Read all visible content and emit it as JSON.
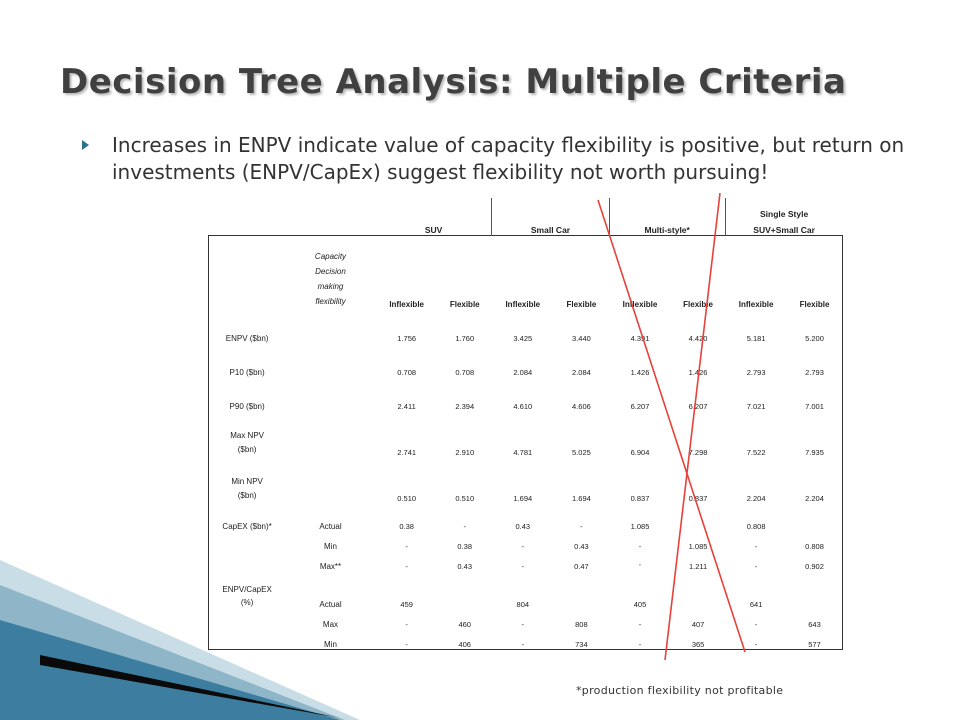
{
  "title": "Decision Tree Analysis: Multiple Criteria",
  "bullet": "Increases in ENPV indicate value of capacity flexibility is positive, but return on investments (ENPV/CapEx) suggest flexibility not worth pursuing!",
  "table": {
    "groups": [
      "SUV",
      "Small Car",
      "Multi-style*"
    ],
    "single_style_line1": "Single Style",
    "single_style_line2": "SUV+Small Car",
    "capacity_l1": "Capacity",
    "capacity_l2": "Decision",
    "capacity_l3": "making",
    "capacity_l4": "flexibility",
    "sub_inflexible": "Inflexible",
    "sub_flexible": "Flexible",
    "rows": {
      "enpv": {
        "label": "ENPV ($bn)",
        "values": [
          "1.756",
          "1.760",
          "3.425",
          "3.440",
          "4.391",
          "4.420",
          "5.181",
          "5.200"
        ]
      },
      "p10": {
        "label": "P10 ($bn)",
        "values": [
          "0.708",
          "0.708",
          "2.084",
          "2.084",
          "1.426",
          "1.426",
          "2.793",
          "2.793"
        ]
      },
      "p90": {
        "label": "P90 ($bn)",
        "values": [
          "2.411",
          "2.394",
          "4.610",
          "4.606",
          "6.207",
          "6.207",
          "7.021",
          "7.001"
        ]
      },
      "maxnpv": {
        "label_l1": "Max NPV",
        "label_l2": "($bn)",
        "values": [
          "2.741",
          "2.910",
          "4.781",
          "5.025",
          "6.904",
          "7.298",
          "7.522",
          "7.935"
        ]
      },
      "minnpv": {
        "label_l1": "Min NPV",
        "label_l2": "($bn)",
        "values": [
          "0.510",
          "0.510",
          "1.694",
          "1.694",
          "0.837",
          "0.837",
          "2.204",
          "2.204"
        ]
      },
      "capex": {
        "label": "CapEX ($bn)*",
        "actual_label": "Actual",
        "actual": [
          "0.38",
          "-",
          "0.43",
          "-",
          "1.085",
          "",
          "0.808",
          ""
        ],
        "min_label": "Min",
        "min": [
          "-",
          "0.38",
          "-",
          "0.43",
          "-",
          "1.085",
          "-",
          "0.808"
        ],
        "max_label": "Max**",
        "max": [
          "-",
          "0.43",
          "-",
          "0.47",
          "'",
          "1.211",
          "-",
          "0.902"
        ]
      },
      "enpvcapex": {
        "label_l1": "ENPV/CapEX",
        "label_l2": "(%)",
        "actual_label": "Actual",
        "actual": [
          "459",
          "",
          "804",
          "",
          "405",
          "",
          "641",
          ""
        ],
        "max_label": "Max",
        "max": [
          "-",
          "460",
          "-",
          "808",
          "-",
          "407",
          "-",
          "643"
        ],
        "min_label": "Min",
        "min": [
          "-",
          "406",
          "-",
          "734",
          "-",
          "365",
          "-",
          "577"
        ]
      }
    }
  },
  "footnote": "*production flexibility not profitable",
  "colors": {
    "accent": "#2d6f8e",
    "cross_out": "#e8413a",
    "title": "#404040"
  }
}
